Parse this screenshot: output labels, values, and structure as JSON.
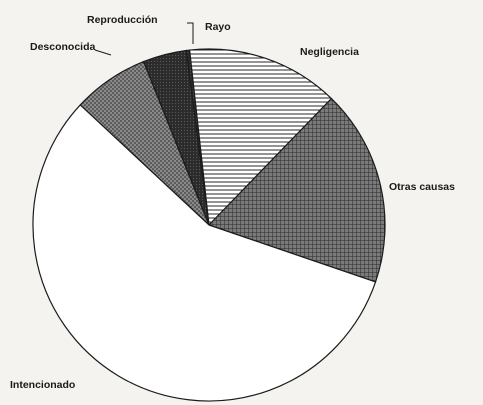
{
  "chart_data": {
    "type": "pie",
    "title": "",
    "start_angle_deg": -47,
    "slices": [
      {
        "label": "Desconocida",
        "value": 7,
        "fill": "dots",
        "color": "#6f6f6f"
      },
      {
        "label": "Reproducción",
        "value": 4,
        "fill": "dark",
        "color": "#2d2d2d"
      },
      {
        "label": "Rayo",
        "value": 0.3,
        "fill": "dark",
        "color": "#2d2d2d"
      },
      {
        "label": "Negligencia",
        "value": 14,
        "fill": "hlines",
        "color": "#ffffff"
      },
      {
        "label": "Otras causas",
        "value": 18,
        "fill": "crosshatch",
        "color": "#4a4a4a"
      },
      {
        "label": "Intencionado",
        "value": 56.7,
        "fill": "white",
        "color": "#ffffff"
      }
    ]
  }
}
